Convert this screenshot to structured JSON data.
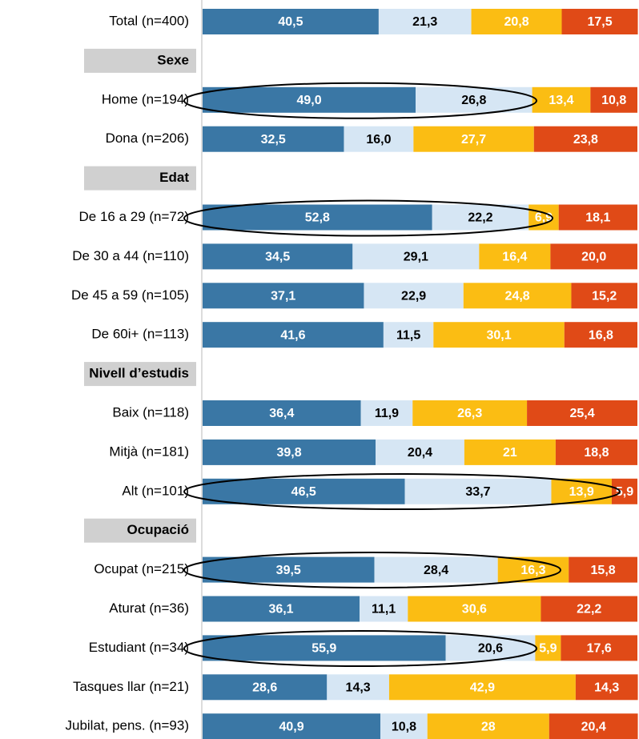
{
  "chart_data": {
    "type": "stacked-bar-horizontal",
    "categories": [
      "Total (n=400)",
      "Sexe",
      "Home (n=194)",
      "Dona (n=206)",
      "Edat",
      "De 16 a 29 (n=72)",
      "De 30 a 44 (n=110)",
      "De 45 a 59 (n=105)",
      "De 60i+ (n=113)",
      "Nivell d’estudis",
      "Baix (n=118)",
      "Mitjà (n=181)",
      "Alt (n=101)",
      "Ocupació",
      "Ocupat (n=215)",
      "Aturat (n=36)",
      "Estudiant (n=34)",
      "Tasques llar (n=21)",
      "Jubilat, pens. (n=93)"
    ],
    "xlim": [
      0,
      100
    ],
    "series": [
      {
        "color": "#3a77a5",
        "values": [
          40.5,
          null,
          49.0,
          32.5,
          null,
          52.8,
          34.5,
          37.1,
          41.6,
          null,
          36.4,
          39.8,
          46.5,
          null,
          39.5,
          36.1,
          55.9,
          28.6,
          40.9
        ],
        "value_labels": [
          "40,5",
          null,
          "49,0",
          "32,5",
          null,
          "52,8",
          "34,5",
          "37,1",
          "41,6",
          null,
          "36,4",
          "39,8",
          "46,5",
          null,
          "39,5",
          "36,1",
          "55,9",
          "28,6",
          "40,9"
        ]
      },
      {
        "color": "#d6e6f4",
        "values": [
          21.3,
          null,
          26.8,
          16.0,
          null,
          22.2,
          29.1,
          22.9,
          11.5,
          null,
          11.9,
          20.4,
          33.7,
          null,
          28.4,
          11.1,
          20.6,
          14.3,
          10.8
        ],
        "value_labels": [
          "21,3",
          null,
          "26,8",
          "16,0",
          null,
          "22,2",
          "29,1",
          "22,9",
          "11,5",
          null,
          "11,9",
          "20,4",
          "33,7",
          null,
          "28,4",
          "11,1",
          "20,6",
          "14,3",
          "10,8"
        ]
      },
      {
        "color": "#fbbd13",
        "values": [
          20.8,
          null,
          13.4,
          27.7,
          null,
          6.9,
          16.4,
          24.8,
          30.1,
          null,
          26.3,
          21,
          13.9,
          null,
          16.3,
          30.6,
          5.9,
          42.9,
          28
        ],
        "value_labels": [
          "20,8",
          null,
          "13,4",
          "27,7",
          null,
          "6,9",
          "16,4",
          "24,8",
          "30,1",
          null,
          "26,3",
          "21",
          "13,9",
          null,
          "16,3",
          "30,6",
          "5,9",
          "42,9",
          "28"
        ]
      },
      {
        "color": "#e04a17",
        "values": [
          17.5,
          null,
          10.8,
          23.8,
          null,
          18.1,
          20.0,
          15.2,
          16.8,
          null,
          25.4,
          18.8,
          5.9,
          null,
          15.8,
          22.2,
          17.6,
          14.3,
          20.4
        ],
        "value_labels": [
          "17,5",
          null,
          "10,8",
          "23,8",
          null,
          "18,1",
          "20,0",
          "15,2",
          "16,8",
          null,
          "25,4",
          "18,8",
          "5,9",
          null,
          "15,8",
          "22,2",
          "17,6",
          "14,3",
          "20,4"
        ]
      }
    ]
  }
}
